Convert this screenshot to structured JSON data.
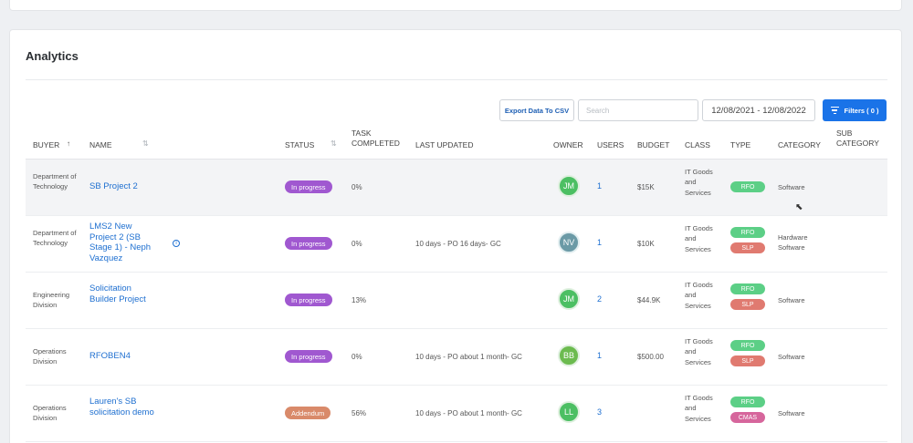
{
  "panel_title": "Analytics",
  "toolbar": {
    "export_label": "Export Data To CSV",
    "search_placeholder": "Search",
    "date_range": "12/08/2021 - 12/08/2022",
    "filters_label": "Filters ( 0 )"
  },
  "columns": {
    "buyer": "BUYER",
    "name": "NAME",
    "status": "STATUS",
    "task_line1": "TASK",
    "task_line2": "COMPLETED",
    "last_updated": "LAST UPDATED",
    "owner": "OWNER",
    "users": "USERS",
    "budget": "BUDGET",
    "class": "CLASS",
    "type": "TYPE",
    "category": "CATEGORY",
    "sub_line1": "SUB",
    "sub_line2": "CATEGORY"
  },
  "rows": [
    {
      "buyer": "Department of Technology",
      "name": "SB Project 2",
      "status": "In progress",
      "task_completed": "0%",
      "last_updated": "",
      "owner_initials": "JM",
      "users": "1",
      "budget": "$15K",
      "class": "IT Goods and Services",
      "types": [
        "RFO"
      ],
      "category": "Software"
    },
    {
      "buyer": "Department of Technology",
      "name": "LMS2 New Project 2 (SB Stage 1) - Neph Vazquez",
      "status": "In progress",
      "task_completed": "0%",
      "last_updated": "10 days - PO 16 days- GC",
      "owner_initials": "NV",
      "users": "1",
      "budget": "$10K",
      "class": "IT Goods and Services",
      "types": [
        "RFO",
        "SLP"
      ],
      "category": "Hardware Software"
    },
    {
      "buyer": "Engineering Division",
      "name": "Solicitation Builder Project",
      "status": "In progress",
      "task_completed": "13%",
      "last_updated": "",
      "owner_initials": "JM",
      "users": "2",
      "budget": "$44.9K",
      "class": "IT Goods and Services",
      "types": [
        "RFO",
        "SLP"
      ],
      "category": "Software"
    },
    {
      "buyer": "Operations Division",
      "name": "RFOBEN4",
      "status": "In progress",
      "task_completed": "0%",
      "last_updated": "10 days - PO about 1 month- GC",
      "owner_initials": "BB",
      "users": "1",
      "budget": "$500.00",
      "class": "IT Goods and Services",
      "types": [
        "RFO",
        "SLP"
      ],
      "category": "Software"
    },
    {
      "buyer": "Operations Division",
      "name": "Lauren's SB solicitation demo",
      "status": "Addendum",
      "task_completed": "56%",
      "last_updated": "10 days - PO about 1 month- GC",
      "owner_initials": "LL",
      "users": "3",
      "budget": "",
      "class": "IT Goods and Services",
      "types": [
        "RFO",
        "CMAS"
      ],
      "category": "Software"
    }
  ],
  "colors": {
    "status_in_progress": "#a058d0",
    "status_addendum": "#d98a6a",
    "badge_rfo": "#5ccf86",
    "badge_slp": "#e07a70",
    "badge_cmas": "#d6669c",
    "avatar_green": "#4cbf63",
    "avatar_nv": "#6b9aa6",
    "avatar_bb": "#6cbb4f",
    "primary": "#1a73e8"
  }
}
